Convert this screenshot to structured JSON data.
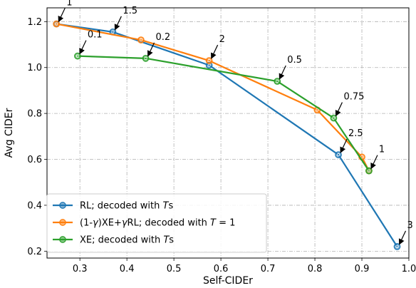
{
  "chart_data": {
    "type": "line",
    "xlabel": "Self-CIDEr",
    "ylabel": "Avg CIDEr",
    "xlim": [
      0.23,
      1.0
    ],
    "ylim": [
      0.17,
      1.26
    ],
    "xticks": [
      0.3,
      0.4,
      0.5,
      0.6,
      0.7,
      0.8,
      0.9,
      1.0
    ],
    "yticks": [
      0.2,
      0.4,
      0.6,
      0.8,
      1.0,
      1.2
    ],
    "xtick_labels": [
      "0.3",
      "0.4",
      "0.5",
      "0.6",
      "0.7",
      "0.8",
      "0.9",
      "1.0"
    ],
    "ytick_labels": [
      "0.2",
      "0.4",
      "0.6",
      "0.8",
      "1.0",
      "1.2"
    ],
    "grid": true,
    "legend_position": "lower-left",
    "series": [
      {
        "name": "RL; decoded with Ts",
        "legend": {
          "prefix": "RL; decoded with ",
          "italic": "T",
          "suffix": "s"
        },
        "color": "#1f77b4",
        "x": [
          0.25,
          0.37,
          0.575,
          0.85,
          0.975
        ],
        "y": [
          1.19,
          1.155,
          1.01,
          0.62,
          0.22
        ]
      },
      {
        "name": "(1-γ)XE+γRL; decoded with T = 1",
        "legend": {
          "prefix": "(1-",
          "italic": "γ",
          "mid": ")XE+",
          "italic2": "γ",
          "suffix": "RL; decoded with ",
          "italic3": "T",
          "suffix2": " = 1"
        },
        "color": "#ff7f0e",
        "x": [
          0.25,
          0.43,
          0.575,
          0.805,
          0.9,
          0.915
        ],
        "y": [
          1.19,
          1.12,
          1.03,
          0.815,
          0.61,
          0.55
        ]
      },
      {
        "name": "XE; decoded with Ts",
        "legend": {
          "prefix": "XE; decoded with ",
          "italic": "T",
          "suffix": "s"
        },
        "color": "#2ca02c",
        "x": [
          0.295,
          0.44,
          0.72,
          0.84,
          0.915
        ],
        "y": [
          1.05,
          1.04,
          0.94,
          0.78,
          0.55
        ]
      }
    ],
    "annotations": [
      {
        "text": "1",
        "x": 0.25,
        "y": 1.19
      },
      {
        "text": "1.5",
        "x": 0.37,
        "y": 1.155
      },
      {
        "text": "0.1",
        "x": 0.295,
        "y": 1.05
      },
      {
        "text": "0.2",
        "x": 0.44,
        "y": 1.04
      },
      {
        "text": "2",
        "x": 0.575,
        "y": 1.03
      },
      {
        "text": "0.5",
        "x": 0.72,
        "y": 0.94
      },
      {
        "text": "0.75",
        "x": 0.84,
        "y": 0.78
      },
      {
        "text": "2.5",
        "x": 0.85,
        "y": 0.62
      },
      {
        "text": "1",
        "x": 0.915,
        "y": 0.55
      },
      {
        "text": "3",
        "x": 0.975,
        "y": 0.22
      }
    ]
  }
}
